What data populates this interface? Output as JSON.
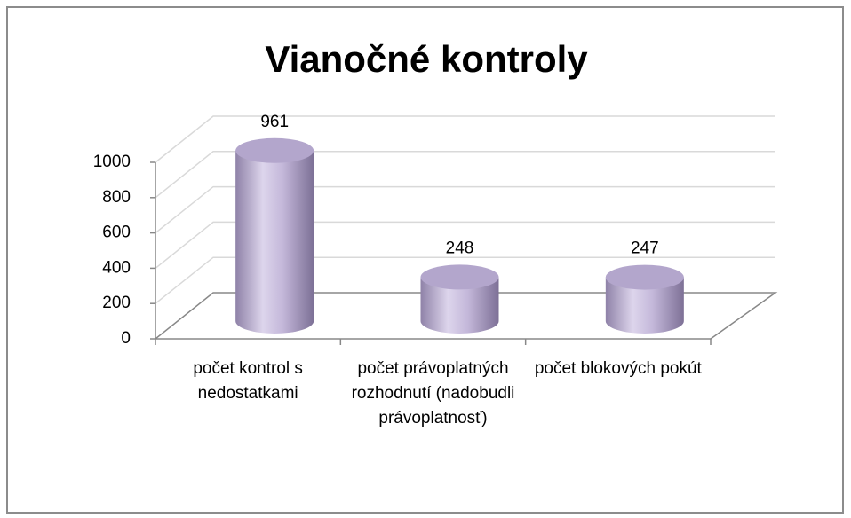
{
  "chart_data": {
    "type": "bar3d",
    "title": "Vianočné kontroly",
    "categories": [
      "počet kontrol s nedostatkami",
      "počet právoplatných rozhodnutí (nadobudli právoplatnosť)",
      "počet blokových pokút"
    ],
    "values": [
      961,
      248,
      247
    ],
    "color": "#b3a6cc",
    "ylim": [
      0,
      1000
    ],
    "yticks": [
      0,
      200,
      400,
      600,
      800,
      1000
    ],
    "grid": true
  }
}
